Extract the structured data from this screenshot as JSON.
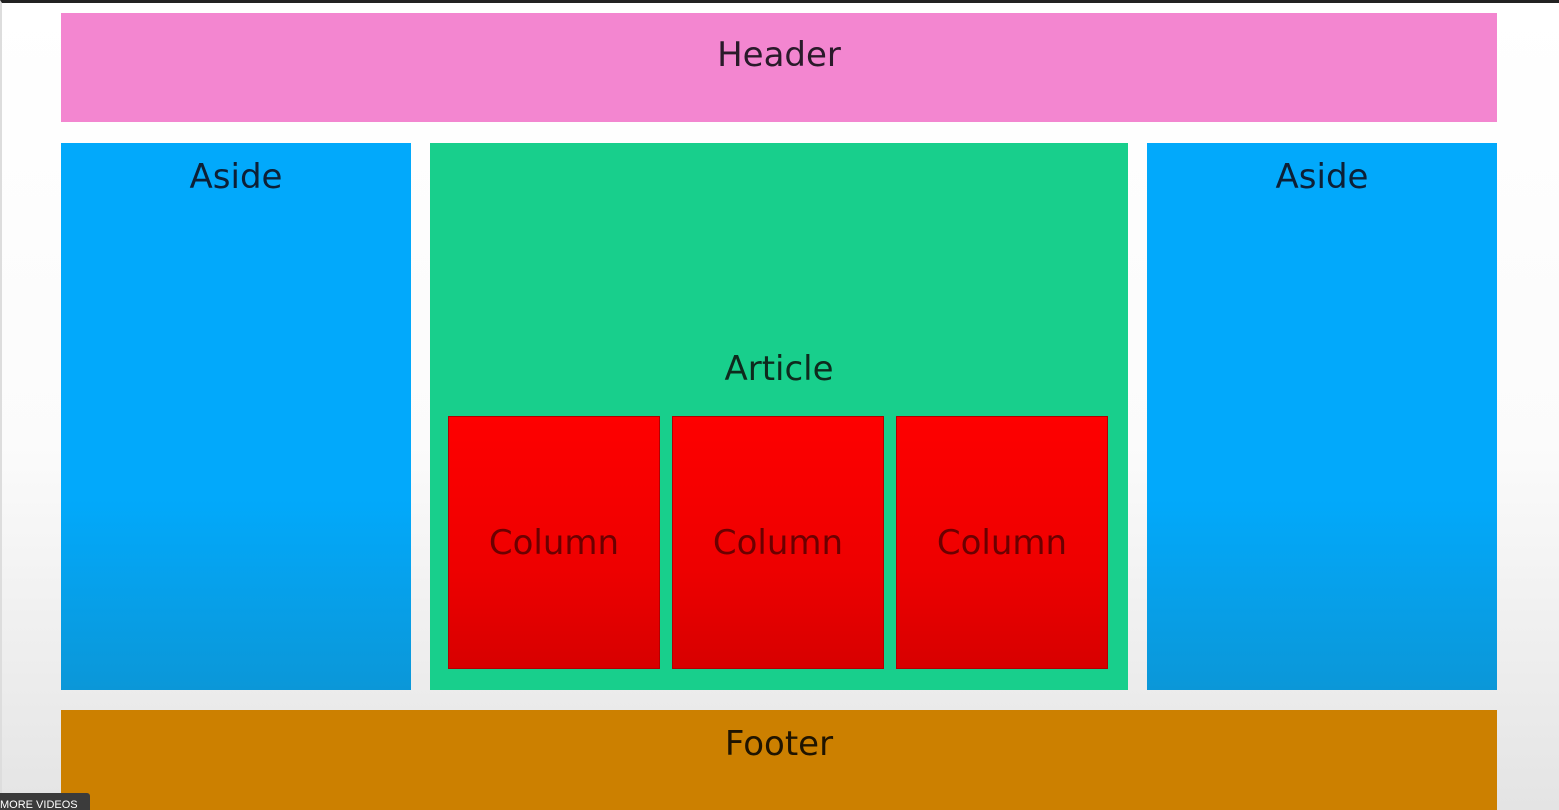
{
  "header": {
    "label": "Header"
  },
  "aside_left": {
    "label": "Aside"
  },
  "article": {
    "label": "Article",
    "columns": [
      {
        "label": "Column"
      },
      {
        "label": "Column"
      },
      {
        "label": "Column"
      }
    ]
  },
  "aside_right": {
    "label": "Aside"
  },
  "footer": {
    "label": "Footer"
  },
  "overlay": {
    "more_videos_label": "MORE VIDEOS"
  },
  "colors": {
    "header": "#f386d0",
    "aside": "#02a9fb",
    "article": "#18cf8c",
    "column": "#fe0000",
    "footer": "#cc8000"
  }
}
